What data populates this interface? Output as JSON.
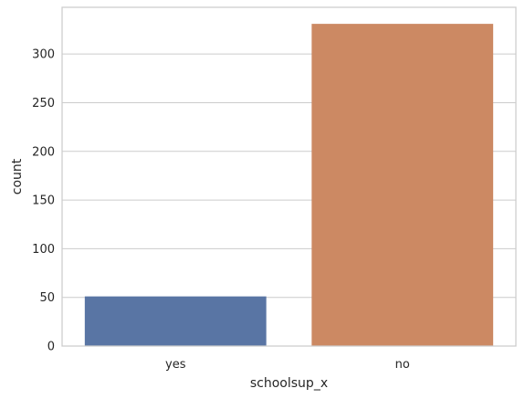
{
  "chart_data": {
    "type": "bar",
    "title": "",
    "xlabel": "schoolsup_x",
    "ylabel": "count",
    "categories": [
      "yes",
      "no"
    ],
    "values": [
      51,
      331
    ],
    "colors": [
      "#5975a4",
      "#cc8963"
    ],
    "ylim": [
      0,
      348
    ],
    "yticks": [
      0,
      50,
      100,
      150,
      200,
      250,
      300
    ],
    "grid": "horizontal",
    "style": "seaborn-whitegrid"
  }
}
